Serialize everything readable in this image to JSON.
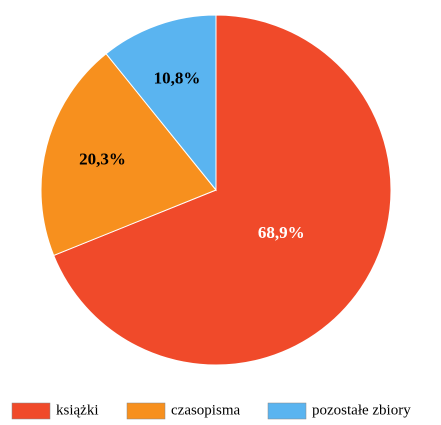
{
  "chart_data": {
    "type": "pie",
    "categories": [
      "książki",
      "czasopisma",
      "pozostałe zbiory"
    ],
    "values": [
      68.9,
      20.3,
      10.8
    ],
    "value_labels": [
      "68,9%",
      "20,3%",
      "10,8%"
    ],
    "colors": [
      "#f04a2a",
      "#f7901e",
      "#5ab4f0"
    ],
    "label_colors": [
      "#ffffff",
      "#000000",
      "#000000"
    ],
    "legend": "bottom"
  }
}
